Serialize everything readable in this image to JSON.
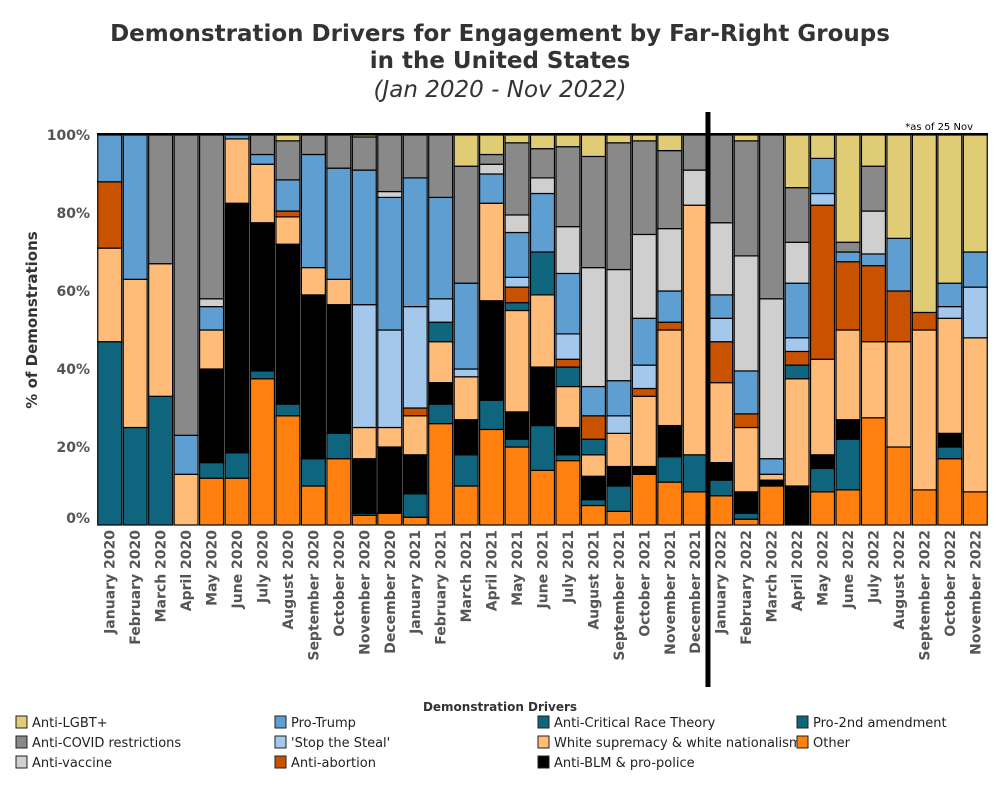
{
  "chart_data": {
    "type": "bar",
    "stacked": true,
    "normalized": true,
    "title": [
      "Demonstration Drivers for Engagement by Far-Right Groups",
      "in the United States"
    ],
    "subtitle": "(Jan 2020 - Nov 2022)",
    "ylabel": "% of Demonstrations",
    "xlabel": "",
    "ylim": [
      0,
      100
    ],
    "yticks": [
      "0%",
      "20%",
      "40%",
      "60%",
      "80%",
      "100%"
    ],
    "note": "*as of 25 Nov",
    "divider_after": "December 2021",
    "legend_title": "Demonstration Drivers",
    "legend_placement": "bottom",
    "categories": [
      "January 2020",
      "February 2020",
      "March 2020",
      "April 2020",
      "May 2020",
      "June 2020",
      "July 2020",
      "August 2020",
      "September 2020",
      "October 2020",
      "November 2020",
      "December 2020",
      "January 2021",
      "February 2021",
      "March 2021",
      "April 2021",
      "May 2021",
      "June 2021",
      "July 2021",
      "August 2021",
      "September 2021",
      "October 2021",
      "November 2021",
      "December 2021",
      "January 2022",
      "February 2022",
      "March 2022",
      "April 2022",
      "May 2022",
      "June 2022",
      "July 2022",
      "August 2022",
      "September 2022",
      "October 2022",
      "November 2022"
    ],
    "legend_order": [
      "lgbt",
      "trump",
      "crt",
      "p2a",
      "covid",
      "sts",
      "ws",
      "other",
      "vaccine",
      "abortion",
      "blm"
    ],
    "series": [
      {
        "key": "other",
        "name": "Other",
        "color": "#ff800e",
        "values": [
          0,
          0,
          0,
          0,
          12,
          12,
          37.5,
          28,
          10,
          17,
          2.5,
          3,
          2,
          26,
          10,
          24.5,
          20,
          14,
          16.5,
          5,
          3.5,
          13,
          11,
          8.5,
          7.5,
          1.5,
          10,
          0,
          8.5,
          9,
          27.5,
          20,
          9,
          17,
          8.5
        ]
      },
      {
        "key": "p2a",
        "name": "Pro-2nd amendment",
        "color": "#10657e",
        "values": [
          47,
          25,
          33,
          0,
          4,
          6.5,
          2,
          3,
          7,
          6.5,
          0.5,
          0,
          6,
          5,
          8,
          7.5,
          2,
          11.5,
          1.5,
          1.5,
          6.5,
          0,
          6.5,
          9.5,
          4,
          1.5,
          0,
          0,
          6,
          13,
          0,
          0,
          0,
          3,
          0
        ]
      },
      {
        "key": "blm",
        "name": "Anti-BLM & pro-police",
        "color": "#000000",
        "values": [
          0,
          0,
          0,
          0,
          24,
          64,
          38,
          41,
          42,
          33,
          14,
          17,
          10,
          5.5,
          9,
          25.5,
          7,
          15,
          7,
          6,
          5,
          2,
          8,
          0,
          4.5,
          5.5,
          1.5,
          10,
          3.5,
          5,
          0,
          0,
          0,
          3.5,
          0
        ]
      },
      {
        "key": "ws",
        "name": "White supremacy & white nationalism",
        "color": "#ffbc79",
        "values": [
          24,
          38,
          34,
          13,
          10,
          16.5,
          15,
          7,
          7,
          6.5,
          8,
          5,
          10,
          10.5,
          11,
          25,
          26,
          18.5,
          10.5,
          5.5,
          8.5,
          18,
          24.5,
          64,
          20.5,
          16.5,
          1.5,
          27.5,
          24.5,
          23,
          19.5,
          27,
          41,
          29.5,
          39.5
        ]
      },
      {
        "key": "crt",
        "name": "Anti-Critical Race Theory",
        "color": "#10667f",
        "values": [
          0,
          0,
          0,
          0,
          0,
          0,
          0,
          0,
          0,
          0,
          0,
          0,
          0,
          5,
          0,
          0,
          2,
          11,
          5,
          4,
          0,
          0,
          0,
          0,
          0,
          0,
          0,
          3.5,
          0,
          0,
          0,
          0,
          0,
          0,
          0
        ]
      },
      {
        "key": "abortion",
        "name": "Anti-abortion",
        "color": "#c85200",
        "values": [
          17,
          0,
          0,
          0,
          0,
          0,
          0,
          1.5,
          0,
          0,
          0,
          0,
          2,
          0,
          0,
          0,
          4,
          0,
          2,
          6,
          0,
          2,
          2,
          0,
          10.5,
          3.5,
          0,
          3.5,
          39.5,
          17.5,
          19.5,
          13,
          4.5,
          0,
          0
        ]
      },
      {
        "key": "sts",
        "name": "'Stop the Steal'",
        "color": "#a3c8ec",
        "values": [
          0,
          0,
          0,
          0,
          0,
          0,
          0,
          0,
          0,
          0,
          31.5,
          25,
          26,
          6,
          2,
          0,
          2.5,
          0,
          6.5,
          0,
          4.5,
          6,
          0,
          0,
          6,
          0,
          0,
          3.5,
          3,
          0,
          0,
          0,
          0,
          3,
          13
        ]
      },
      {
        "key": "trump",
        "name": "Pro-Trump",
        "color": "#5f9ed1",
        "values": [
          12,
          37,
          0,
          10,
          6,
          1,
          2.5,
          8,
          29,
          28.5,
          34.5,
          34,
          33,
          26,
          22,
          7.5,
          11.5,
          15,
          15.5,
          7.5,
          9,
          12,
          8,
          0,
          6,
          11,
          4,
          14,
          9,
          2.5,
          3,
          13.5,
          0,
          6,
          9
        ]
      },
      {
        "key": "vaccine",
        "name": "Anti-vaccine",
        "color": "#cfcfcf",
        "values": [
          0,
          0,
          0,
          0,
          2,
          0,
          0,
          0,
          0,
          0,
          0,
          1.5,
          0,
          0,
          0,
          2.5,
          4.5,
          4,
          12,
          30.5,
          28.5,
          21.5,
          16,
          9,
          18.5,
          29.5,
          41,
          10.5,
          0,
          0,
          11,
          0,
          0,
          0,
          0
        ]
      },
      {
        "key": "covid",
        "name": "Anti-COVID restrictions",
        "color": "#898989",
        "values": [
          0,
          0,
          33,
          77,
          42,
          0,
          5,
          10,
          5,
          8.5,
          8.5,
          14.5,
          11,
          16,
          30,
          2.5,
          18.5,
          7.5,
          20.5,
          28.5,
          32.5,
          24,
          20,
          9,
          22.5,
          29.5,
          42,
          14,
          0,
          2.5,
          11.5,
          0,
          0,
          0,
          0
        ]
      },
      {
        "key": "lgbt",
        "name": "Anti-LGBT+",
        "color": "#e0cc74",
        "values": [
          0,
          0,
          0,
          0,
          0,
          0,
          0,
          1.5,
          0,
          0,
          0.5,
          0,
          0,
          0,
          8,
          5,
          2,
          3.5,
          3,
          5.5,
          2,
          1.5,
          4,
          0,
          0,
          1.5,
          0,
          13.5,
          6,
          27.5,
          8,
          26.5,
          45.5,
          38,
          30
        ]
      }
    ]
  }
}
